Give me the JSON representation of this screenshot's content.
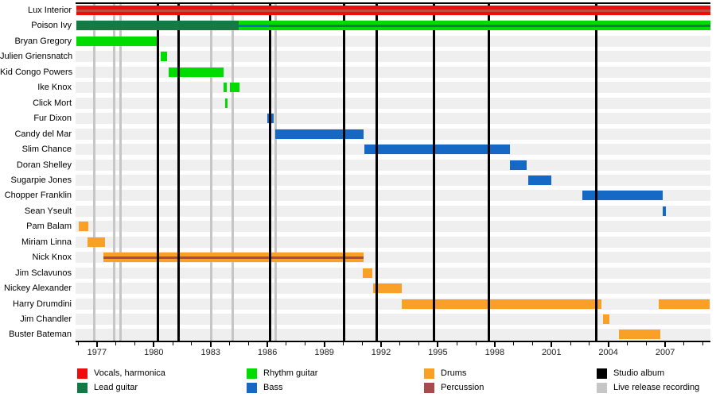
{
  "chart_data": {
    "type": "gantt",
    "title": "",
    "axis": {
      "unit": "year",
      "start": 1975.87,
      "end": 2009.39,
      "major_ticks": [
        1977,
        1980,
        1983,
        1986,
        1989,
        1992,
        1995,
        1998,
        2001,
        2004,
        2007
      ],
      "minor_tick_step": 1,
      "grid": false
    },
    "colors": {
      "vocals": "#EE0D0D",
      "vocals_stripe": "#C44A45",
      "lead": "#137A43",
      "rhythm": "#00DC00",
      "bass": "#1568C4",
      "drums": "#F9A126",
      "percussion": "#A8494B",
      "studio_album": "#000000",
      "live_recording": "#C6C6C6",
      "row_band": "#EFEFEF"
    },
    "rows": [
      {
        "name": "Lux Interior",
        "segments": [
          {
            "start": 1975.9,
            "end": 2009.39,
            "color": "vocals",
            "stripes": [
              "vocals_stripe"
            ]
          }
        ]
      },
      {
        "name": "Poison Ivy",
        "segments": [
          {
            "start": 1975.9,
            "end": 1984.48,
            "color": "lead"
          },
          {
            "start": 1984.48,
            "end": 1986.07,
            "color": "rhythm",
            "stripes": [
              "bass"
            ]
          },
          {
            "start": 1986.07,
            "end": 2009.39,
            "color": "rhythm",
            "stripes": [
              "lead"
            ]
          }
        ]
      },
      {
        "name": "Bryan Gregory",
        "segments": [
          {
            "start": 1975.9,
            "end": 1980.25,
            "color": "rhythm"
          }
        ]
      },
      {
        "name": "Julien Griensnatch",
        "segments": [
          {
            "start": 1980.35,
            "end": 1980.7,
            "color": "rhythm"
          }
        ]
      },
      {
        "name": "Kid Congo Powers",
        "segments": [
          {
            "start": 1980.8,
            "end": 1983.68,
            "color": "rhythm"
          }
        ]
      },
      {
        "name": "Ike Knox",
        "segments": [
          {
            "start": 1983.7,
            "end": 1983.85,
            "color": "rhythm"
          },
          {
            "start": 1984.0,
            "end": 1984.52,
            "color": "rhythm"
          }
        ]
      },
      {
        "name": "Click Mort",
        "segments": [
          {
            "start": 1983.75,
            "end": 1983.9,
            "color": "rhythm"
          }
        ]
      },
      {
        "name": "Fur Dixon",
        "segments": [
          {
            "start": 1986.0,
            "end": 1986.32,
            "color": "bass"
          }
        ]
      },
      {
        "name": "Candy del Mar",
        "segments": [
          {
            "start": 1986.41,
            "end": 1991.07,
            "color": "bass"
          }
        ]
      },
      {
        "name": "Slim Chance",
        "segments": [
          {
            "start": 1991.11,
            "end": 1998.8,
            "color": "bass"
          }
        ]
      },
      {
        "name": "Doran Shelley",
        "segments": [
          {
            "start": 1998.8,
            "end": 1999.7,
            "color": "bass"
          }
        ]
      },
      {
        "name": "Sugarpie Jones",
        "segments": [
          {
            "start": 1999.75,
            "end": 2000.98,
            "color": "bass"
          }
        ]
      },
      {
        "name": "Chopper Franklin",
        "segments": [
          {
            "start": 2002.62,
            "end": 2006.86,
            "color": "bass"
          }
        ]
      },
      {
        "name": "Sean Yseult",
        "segments": [
          {
            "start": 2006.85,
            "end": 2007.05,
            "color": "bass"
          }
        ]
      },
      {
        "name": "Pam Balam",
        "segments": [
          {
            "start": 1976.03,
            "end": 1976.55,
            "color": "drums"
          }
        ]
      },
      {
        "name": "Miriam Linna",
        "segments": [
          {
            "start": 1976.5,
            "end": 1977.42,
            "color": "drums"
          }
        ]
      },
      {
        "name": "Nick Knox",
        "segments": [
          {
            "start": 1977.35,
            "end": 1991.07,
            "color": "drums",
            "stripes": [
              "percussion"
            ]
          }
        ]
      },
      {
        "name": "Jim Sclavunos",
        "segments": [
          {
            "start": 1991.03,
            "end": 1991.55,
            "color": "drums"
          }
        ]
      },
      {
        "name": "Nickey Alexander",
        "segments": [
          {
            "start": 1991.57,
            "end": 1993.08,
            "color": "drums"
          }
        ]
      },
      {
        "name": "Harry Drumdini",
        "segments": [
          {
            "start": 1993.08,
            "end": 2003.63,
            "color": "drums"
          },
          {
            "start": 2006.65,
            "end": 2009.35,
            "color": "drums"
          }
        ]
      },
      {
        "name": "Jim Chandler",
        "segments": [
          {
            "start": 2003.71,
            "end": 2004.05,
            "color": "drums"
          }
        ]
      },
      {
        "name": "Buster Bateman",
        "segments": [
          {
            "start": 2004.55,
            "end": 2006.73,
            "color": "drums"
          }
        ]
      }
    ],
    "studio_album_lines": [
      1980.2,
      1981.33,
      1986.16,
      1990.06,
      1991.78,
      1994.81,
      1997.71,
      2003.38
    ],
    "live_recording_lines": [
      1976.85,
      1977.9,
      1978.26,
      1983.05,
      1984.18,
      1986.45
    ]
  },
  "legend": {
    "columns": [
      [
        {
          "label": "Vocals, harmonica",
          "color": "vocals"
        },
        {
          "label": "Lead guitar",
          "color": "lead"
        }
      ],
      [
        {
          "label": "Rhythm guitar",
          "color": "rhythm"
        },
        {
          "label": "Bass",
          "color": "bass"
        }
      ],
      [
        {
          "label": "Drums",
          "color": "drums"
        },
        {
          "label": "Percussion",
          "color": "percussion"
        }
      ],
      [
        {
          "label": "Studio album",
          "color": "studio_album"
        },
        {
          "label": "Live release recording",
          "color": "live_recording"
        }
      ]
    ]
  }
}
